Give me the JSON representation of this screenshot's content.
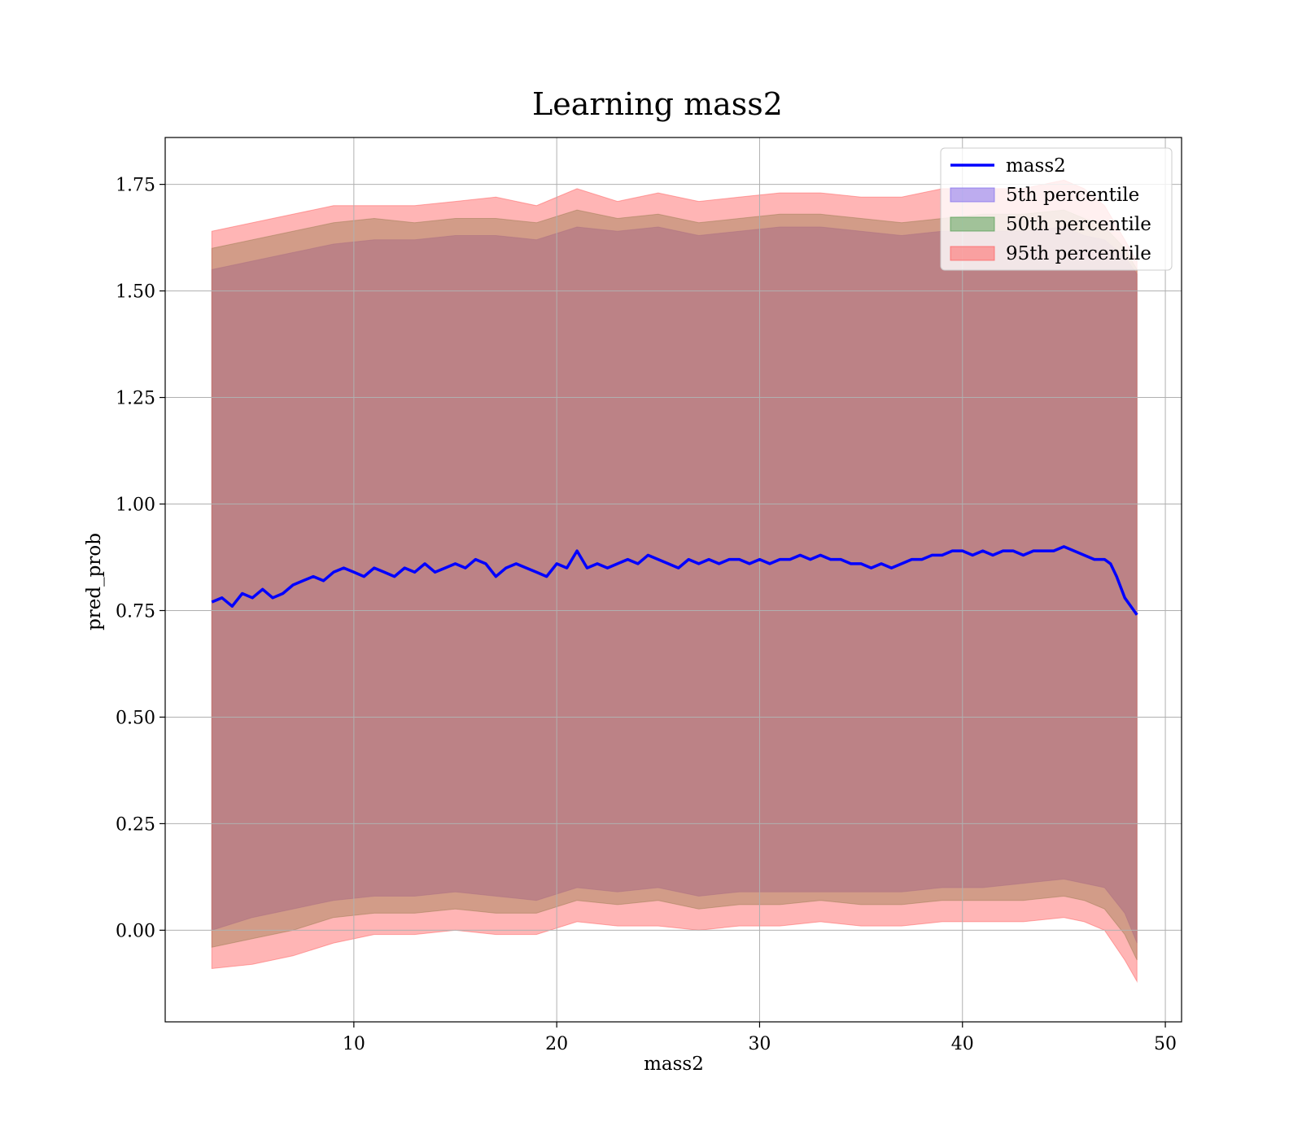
{
  "chart_data": {
    "type": "area",
    "title": "Learning mass2",
    "xlabel": "mass2",
    "ylabel": "pred_prob",
    "xlim": [
      0.7,
      50.8
    ],
    "ylim": [
      -0.215,
      1.86
    ],
    "xticks": [
      10,
      20,
      30,
      40,
      50
    ],
    "xtick_labels": [
      "10",
      "20",
      "30",
      "40",
      "50"
    ],
    "yticks": [
      0.0,
      0.25,
      0.5,
      0.75,
      1.0,
      1.25,
      1.5,
      1.75
    ],
    "ytick_labels": [
      "0.00",
      "0.25",
      "0.50",
      "0.75",
      "1.00",
      "1.25",
      "1.50",
      "1.75"
    ],
    "grid": true,
    "legend_position": "top-right",
    "line_series": {
      "name": "mass2",
      "color": "#0000ff",
      "x": [
        3.0,
        3.5,
        4.0,
        4.5,
        5.0,
        5.5,
        6.0,
        6.5,
        7.0,
        7.5,
        8.0,
        8.5,
        9.0,
        9.5,
        10.0,
        10.5,
        11.0,
        11.5,
        12.0,
        12.5,
        13.0,
        13.5,
        14.0,
        14.5,
        15.0,
        15.5,
        16.0,
        16.5,
        17.0,
        17.5,
        18.0,
        18.5,
        19.0,
        19.5,
        20.0,
        20.5,
        21.0,
        21.5,
        22.0,
        22.5,
        23.0,
        23.5,
        24.0,
        24.5,
        25.0,
        25.5,
        26.0,
        26.5,
        27.0,
        27.5,
        28.0,
        28.5,
        29.0,
        29.5,
        30.0,
        30.5,
        31.0,
        31.5,
        32.0,
        32.5,
        33.0,
        33.5,
        34.0,
        34.5,
        35.0,
        35.5,
        36.0,
        36.5,
        37.0,
        37.5,
        38.0,
        38.5,
        39.0,
        39.5,
        40.0,
        40.5,
        41.0,
        41.5,
        42.0,
        42.5,
        43.0,
        43.5,
        44.0,
        44.5,
        45.0,
        45.5,
        46.0,
        46.5,
        47.0,
        47.3,
        47.6,
        48.0,
        48.6
      ],
      "y": [
        0.77,
        0.78,
        0.76,
        0.79,
        0.78,
        0.8,
        0.78,
        0.79,
        0.81,
        0.82,
        0.83,
        0.82,
        0.84,
        0.85,
        0.84,
        0.83,
        0.85,
        0.84,
        0.83,
        0.85,
        0.84,
        0.86,
        0.84,
        0.85,
        0.86,
        0.85,
        0.87,
        0.86,
        0.83,
        0.85,
        0.86,
        0.85,
        0.84,
        0.83,
        0.86,
        0.85,
        0.89,
        0.85,
        0.86,
        0.85,
        0.86,
        0.87,
        0.86,
        0.88,
        0.87,
        0.86,
        0.85,
        0.87,
        0.86,
        0.87,
        0.86,
        0.87,
        0.87,
        0.86,
        0.87,
        0.86,
        0.87,
        0.87,
        0.88,
        0.87,
        0.88,
        0.87,
        0.87,
        0.86,
        0.86,
        0.85,
        0.86,
        0.85,
        0.86,
        0.87,
        0.87,
        0.88,
        0.88,
        0.89,
        0.89,
        0.88,
        0.89,
        0.88,
        0.89,
        0.89,
        0.88,
        0.89,
        0.89,
        0.89,
        0.9,
        0.89,
        0.88,
        0.87,
        0.87,
        0.86,
        0.83,
        0.78,
        0.74
      ]
    },
    "bands": [
      {
        "name": "5th percentile",
        "color": "#7b68ee",
        "opacity": 0.55,
        "x": [
          3.0,
          5.0,
          7.0,
          9.0,
          11.0,
          13.0,
          15.0,
          17.0,
          19.0,
          21.0,
          23.0,
          25.0,
          27.0,
          29.0,
          31.0,
          33.0,
          35.0,
          37.0,
          39.0,
          41.0,
          43.0,
          45.0,
          46.0,
          47.0,
          48.0,
          48.6
        ],
        "upper": [
          1.55,
          1.57,
          1.59,
          1.61,
          1.62,
          1.62,
          1.63,
          1.63,
          1.62,
          1.65,
          1.64,
          1.65,
          1.63,
          1.64,
          1.65,
          1.65,
          1.64,
          1.63,
          1.64,
          1.64,
          1.64,
          1.65,
          1.63,
          1.62,
          1.58,
          1.54
        ],
        "lower": [
          0.0,
          0.03,
          0.05,
          0.07,
          0.08,
          0.08,
          0.09,
          0.08,
          0.07,
          0.1,
          0.09,
          0.1,
          0.08,
          0.09,
          0.09,
          0.09,
          0.09,
          0.09,
          0.1,
          0.1,
          0.11,
          0.12,
          0.11,
          0.1,
          0.04,
          -0.03
        ]
      },
      {
        "name": "50th percentile",
        "color": "#4b9a4b",
        "opacity": 0.45,
        "x": [
          3.0,
          5.0,
          7.0,
          9.0,
          11.0,
          13.0,
          15.0,
          17.0,
          19.0,
          21.0,
          23.0,
          25.0,
          27.0,
          29.0,
          31.0,
          33.0,
          35.0,
          37.0,
          39.0,
          41.0,
          43.0,
          45.0,
          46.0,
          47.0,
          48.0,
          48.6
        ],
        "upper": [
          1.6,
          1.62,
          1.64,
          1.66,
          1.67,
          1.66,
          1.67,
          1.67,
          1.66,
          1.69,
          1.67,
          1.68,
          1.66,
          1.67,
          1.68,
          1.68,
          1.67,
          1.66,
          1.67,
          1.68,
          1.68,
          1.69,
          1.67,
          1.65,
          1.6,
          1.55
        ],
        "lower": [
          -0.04,
          -0.02,
          0.0,
          0.03,
          0.04,
          0.04,
          0.05,
          0.04,
          0.04,
          0.07,
          0.06,
          0.07,
          0.05,
          0.06,
          0.06,
          0.07,
          0.06,
          0.06,
          0.07,
          0.07,
          0.07,
          0.08,
          0.07,
          0.05,
          -0.01,
          -0.07
        ]
      },
      {
        "name": "95th percentile",
        "color": "#ff5a5a",
        "opacity": 0.45,
        "x": [
          3.0,
          5.0,
          7.0,
          9.0,
          11.0,
          13.0,
          15.0,
          17.0,
          19.0,
          21.0,
          23.0,
          25.0,
          27.0,
          29.0,
          31.0,
          33.0,
          35.0,
          37.0,
          39.0,
          41.0,
          43.0,
          45.0,
          46.0,
          47.0,
          48.0,
          48.6
        ],
        "upper": [
          1.64,
          1.66,
          1.68,
          1.7,
          1.7,
          1.7,
          1.71,
          1.72,
          1.7,
          1.74,
          1.71,
          1.73,
          1.71,
          1.72,
          1.73,
          1.73,
          1.72,
          1.72,
          1.74,
          1.74,
          1.74,
          1.76,
          1.74,
          1.7,
          1.62,
          1.57
        ],
        "lower": [
          -0.09,
          -0.08,
          -0.06,
          -0.03,
          -0.01,
          -0.01,
          0.0,
          -0.01,
          -0.01,
          0.02,
          0.01,
          0.01,
          0.0,
          0.01,
          0.01,
          0.02,
          0.01,
          0.01,
          0.02,
          0.02,
          0.02,
          0.03,
          0.02,
          0.0,
          -0.07,
          -0.12
        ]
      }
    ],
    "legend": [
      {
        "label": "mass2",
        "kind": "line",
        "color": "#0000ff"
      },
      {
        "label": "5th percentile",
        "kind": "patch",
        "color": "#7b68ee"
      },
      {
        "label": "50th percentile",
        "kind": "patch",
        "color": "#4b9a4b"
      },
      {
        "label": "95th percentile",
        "kind": "patch",
        "color": "#ff5a5a"
      }
    ]
  }
}
